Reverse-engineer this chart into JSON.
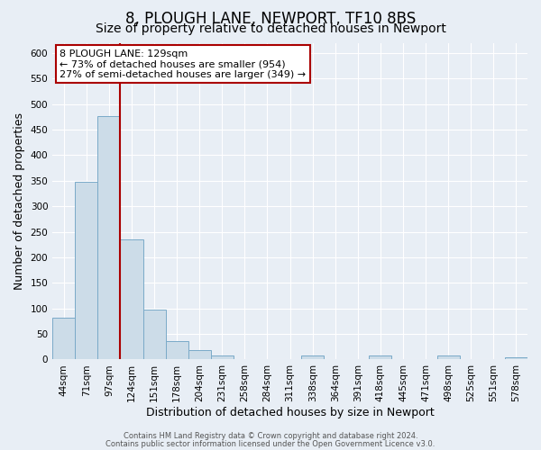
{
  "title": "8, PLOUGH LANE, NEWPORT, TF10 8BS",
  "subtitle": "Size of property relative to detached houses in Newport",
  "xlabel": "Distribution of detached houses by size in Newport",
  "ylabel": "Number of detached properties",
  "categories": [
    "44sqm",
    "71sqm",
    "97sqm",
    "124sqm",
    "151sqm",
    "178sqm",
    "204sqm",
    "231sqm",
    "258sqm",
    "284sqm",
    "311sqm",
    "338sqm",
    "364sqm",
    "391sqm",
    "418sqm",
    "445sqm",
    "471sqm",
    "498sqm",
    "525sqm",
    "551sqm",
    "578sqm"
  ],
  "values": [
    82,
    348,
    476,
    235,
    97,
    36,
    18,
    7,
    0,
    0,
    0,
    7,
    0,
    0,
    7,
    0,
    0,
    7,
    0,
    0,
    5
  ],
  "bar_color": "#ccdce8",
  "bar_edge_color": "#7aaac8",
  "vline_pos": 2.5,
  "vline_color": "#aa0000",
  "annotation_title": "8 PLOUGH LANE: 129sqm",
  "annotation_line1": "← 73% of detached houses are smaller (954)",
  "annotation_line2": "27% of semi-detached houses are larger (349) →",
  "annotation_box_edge_color": "#aa0000",
  "annotation_bg_color": "#ffffff",
  "ylim": [
    0,
    620
  ],
  "yticks": [
    0,
    50,
    100,
    150,
    200,
    250,
    300,
    350,
    400,
    450,
    500,
    550,
    600
  ],
  "footer1": "Contains HM Land Registry data © Crown copyright and database right 2024.",
  "footer2": "Contains public sector information licensed under the Open Government Licence v3.0.",
  "bg_color": "#e8eef5",
  "plot_bg_color": "#e8eef5",
  "title_fontsize": 12,
  "subtitle_fontsize": 10,
  "tick_label_fontsize": 7.5,
  "axis_label_fontsize": 9,
  "footer_fontsize": 6,
  "annotation_fontsize": 8
}
